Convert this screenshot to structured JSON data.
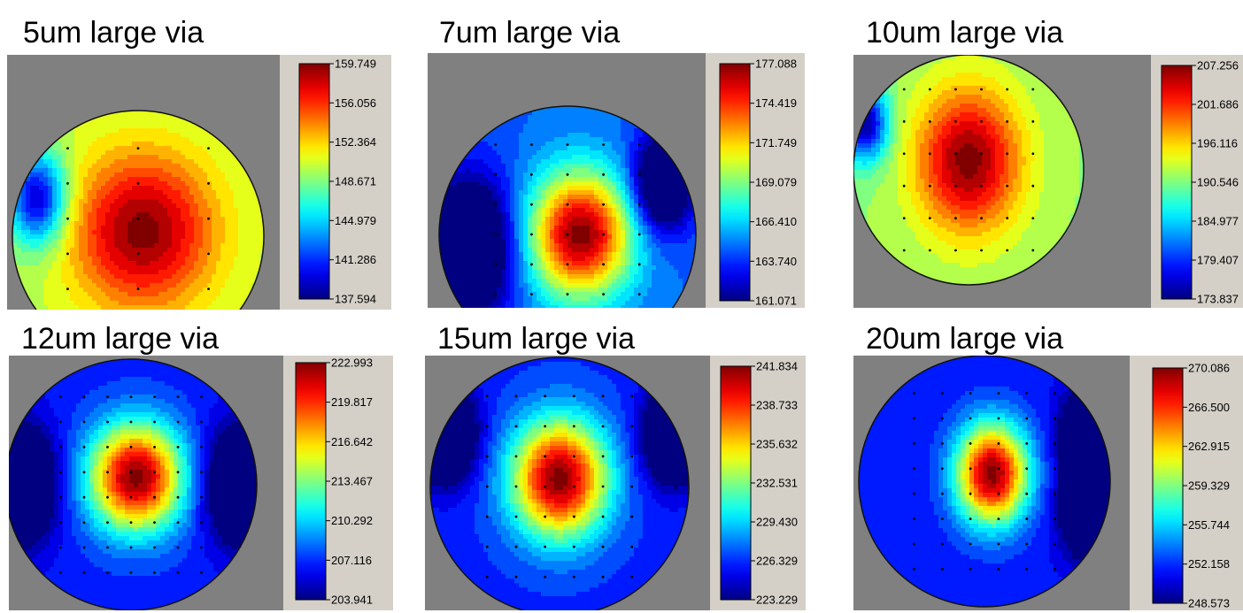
{
  "chart_data": [
    {
      "type": "heatmap",
      "title": "5um large via",
      "colorbar_ticks": [
        "159.749",
        "156.056",
        "152.364",
        "148.671",
        "144.979",
        "141.286",
        "137.594"
      ],
      "range": [
        137.594,
        159.749
      ],
      "colormap": "jet",
      "grid": [
        3,
        6
      ],
      "center": [
        0.52,
        0.48
      ],
      "spread": [
        0.2,
        0.22
      ],
      "edge_level": 0.55,
      "cold": [
        [
          0.1,
          0.35,
          0.08
        ]
      ]
    },
    {
      "type": "heatmap",
      "title": "7um large via",
      "colorbar_ticks": [
        "177.088",
        "174.419",
        "171.749",
        "169.079",
        "166.410",
        "163.740",
        "161.071"
      ],
      "range": [
        161.071,
        177.088
      ],
      "colormap": "jet",
      "grid": [
        5,
        7
      ],
      "center": [
        0.55,
        0.5
      ],
      "spread": [
        0.14,
        0.17
      ],
      "edge_level": 0.22,
      "cold": [
        [
          0.12,
          0.55,
          0.12
        ],
        [
          0.87,
          0.3,
          0.08
        ]
      ]
    },
    {
      "type": "heatmap",
      "title": "10um large via",
      "colorbar_ticks": [
        "207.256",
        "201.686",
        "196.116",
        "190.546",
        "184.977",
        "179.407",
        "173.837"
      ],
      "range": [
        173.837,
        207.256
      ],
      "colormap": "jet",
      "grid": [
        6,
        6
      ],
      "center": [
        0.5,
        0.46
      ],
      "spread": [
        0.16,
        0.22
      ],
      "edge_level": 0.52,
      "cold": [
        [
          0.05,
          0.3,
          0.07
        ]
      ]
    },
    {
      "type": "heatmap",
      "title": "12um large via",
      "colorbar_ticks": [
        "222.993",
        "219.817",
        "216.642",
        "213.467",
        "210.292",
        "207.116",
        "203.941"
      ],
      "range": [
        203.941,
        222.993
      ],
      "colormap": "jet",
      "grid": [
        7,
        8
      ],
      "center": [
        0.52,
        0.47
      ],
      "spread": [
        0.13,
        0.15
      ],
      "edge_level": 0.15,
      "cold": [
        [
          0.05,
          0.5,
          0.1
        ],
        [
          0.95,
          0.5,
          0.1
        ]
      ]
    },
    {
      "type": "heatmap",
      "title": "15um large via",
      "colorbar_ticks": [
        "241.834",
        "238.733",
        "235.632",
        "232.531",
        "229.430",
        "226.329",
        "223.229"
      ],
      "range": [
        223.229,
        241.834
      ],
      "colormap": "jet",
      "grid": [
        6,
        7
      ],
      "center": [
        0.5,
        0.47
      ],
      "spread": [
        0.13,
        0.16
      ],
      "edge_level": 0.16,
      "cold": [
        [
          0.06,
          0.3,
          0.08
        ],
        [
          0.94,
          0.3,
          0.08
        ]
      ]
    },
    {
      "type": "heatmap",
      "title": "20um large via",
      "colorbar_ticks": [
        "270.086",
        "266.500",
        "262.915",
        "259.329",
        "255.744",
        "252.158",
        "248.573"
      ],
      "range": [
        248.573,
        270.086
      ],
      "colormap": "jet",
      "grid": [
        6,
        8
      ],
      "center": [
        0.53,
        0.47
      ],
      "spread": [
        0.1,
        0.14
      ],
      "edge_level": 0.14,
      "cold": [
        [
          0.93,
          0.32,
          0.08
        ],
        [
          0.93,
          0.62,
          0.08
        ]
      ]
    }
  ]
}
